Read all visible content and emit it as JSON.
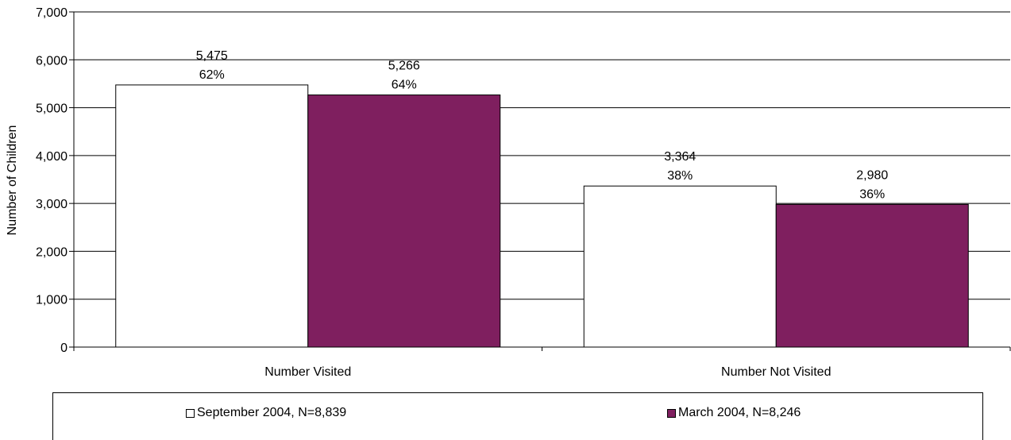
{
  "chart_data": {
    "type": "bar",
    "title": "",
    "xlabel": "",
    "ylabel": "Number of Children",
    "ylim": [
      0,
      7000
    ],
    "yticks": [
      0,
      1000,
      2000,
      3000,
      4000,
      5000,
      6000,
      7000
    ],
    "ytick_labels": [
      "0",
      "1,000",
      "2,000",
      "3,000",
      "4,000",
      "5,000",
      "6,000",
      "7,000"
    ],
    "grid": true,
    "legend_position": "bottom",
    "categories": [
      "Number Visited",
      "Number Not Visited"
    ],
    "series": [
      {
        "name": "September 2004, N=8,839",
        "values": [
          5475,
          3364
        ],
        "labels": [
          "5,475",
          "3,364"
        ],
        "percent_labels": [
          "62%",
          "38%"
        ],
        "color": "#ffffff"
      },
      {
        "name": "March 2004, N=8,246",
        "values": [
          5266,
          2980
        ],
        "labels": [
          "5,266",
          "2,980"
        ],
        "percent_labels": [
          "64%",
          "36%"
        ],
        "color": "#7f1f5f"
      }
    ]
  }
}
